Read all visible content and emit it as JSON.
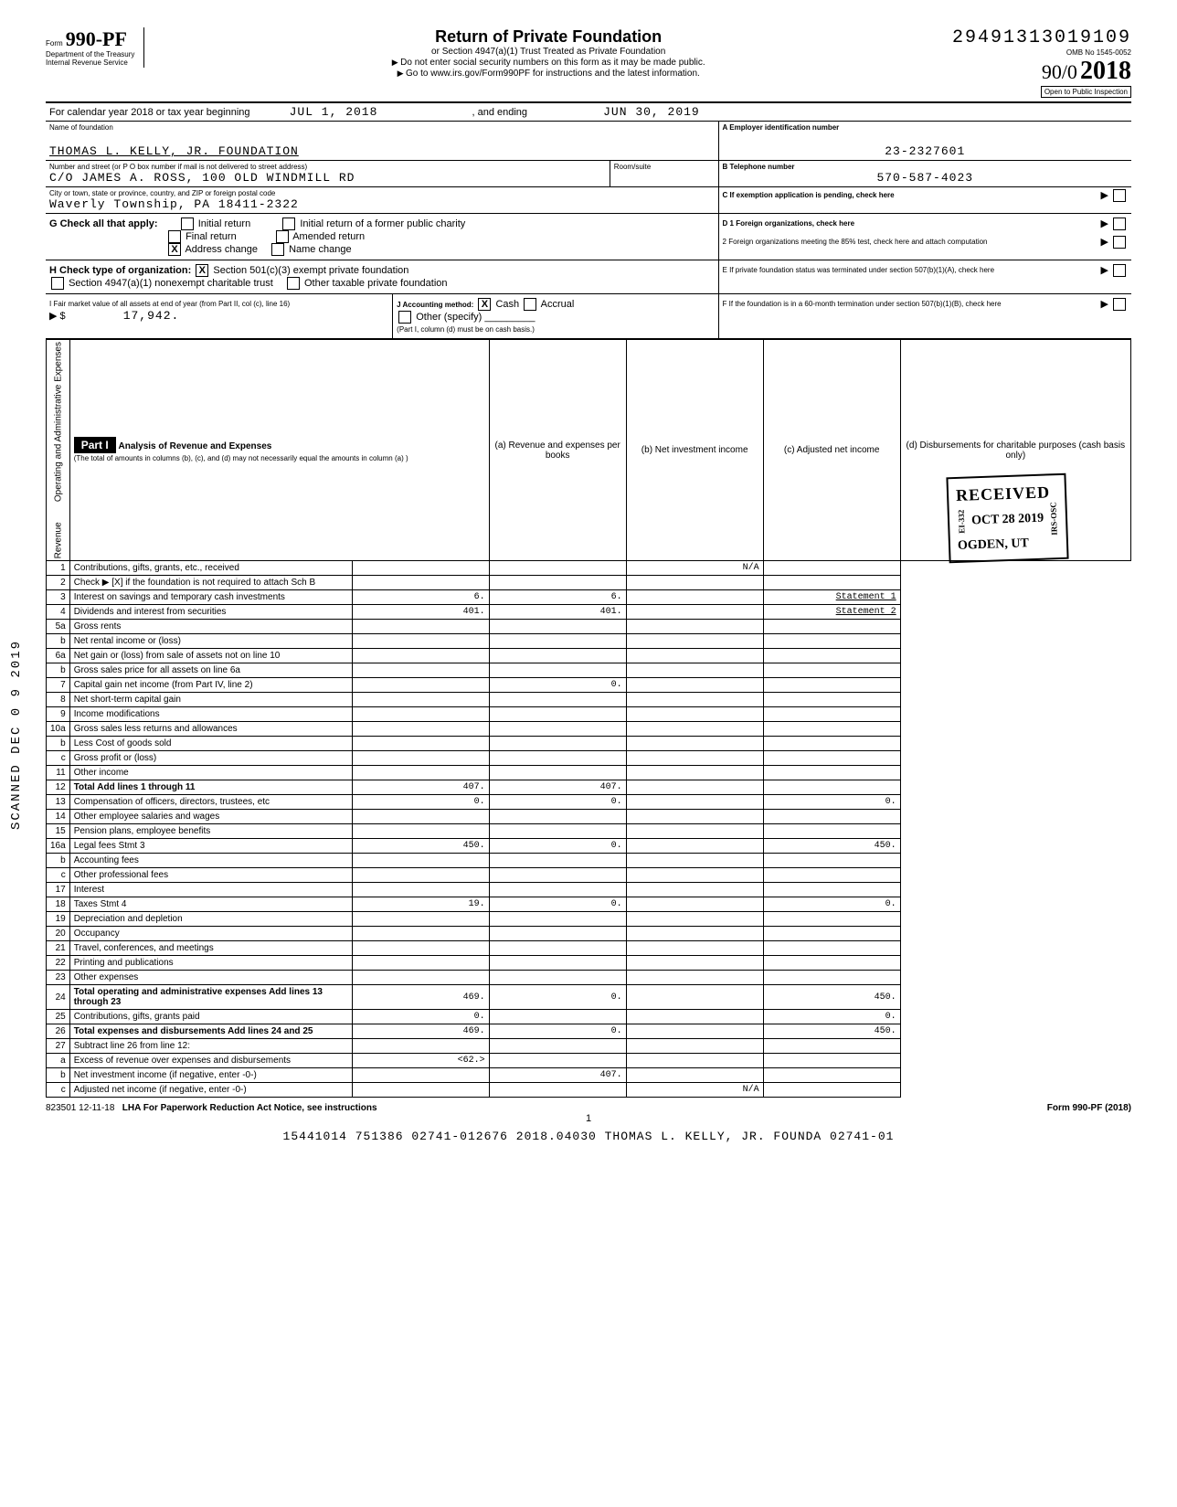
{
  "form": {
    "number_prefix": "Form",
    "number": "990-PF",
    "dept1": "Department of the Treasury",
    "dept2": "Internal Revenue Service",
    "title": "Return of Private Foundation",
    "sub1": "or Section 4947(a)(1) Trust Treated as Private Foundation",
    "sub2": "Do not enter social security numbers on this form as it may be made public.",
    "sub3": "Go to www.irs.gov/Form990PF for instructions and the latest information.",
    "seq": "29491313019109",
    "omb": "OMB No  1545-0052",
    "year": "2018",
    "handnote": "90/0",
    "inspection": "Open to Public Inspection"
  },
  "cal_year": {
    "label": "For calendar year 2018 or tax year beginning",
    "begin": "JUL 1, 2018",
    "end_label": ", and ending",
    "end": "JUN 30, 2019"
  },
  "id": {
    "name_label": "Name of foundation",
    "name": "THOMAS L. KELLY, JR. FOUNDATION",
    "addr_label": "Number and street (or P O  box number if mail is not delivered to street address)",
    "addr": "C/O JAMES A. ROSS, 100 OLD WINDMILL RD",
    "room_label": "Room/suite",
    "city_label": "City or town, state or province, country, and ZIP or foreign postal code",
    "city": "Waverly Township, PA  18411-2322",
    "A_label": "A Employer identification number",
    "A": "23-2327601",
    "B_label": "B Telephone number",
    "B": "570-587-4023",
    "C_label": "C  If exemption application is pending, check here"
  },
  "G": {
    "label": "G  Check all that apply:",
    "opts": [
      "Initial return",
      "Final return",
      "Address change",
      "Initial return of a former public charity",
      "Amended return",
      "Name change"
    ],
    "checked_idx": 2
  },
  "D": {
    "D1": "D 1  Foreign organizations, check here",
    "D2": "2  Foreign organizations meeting the 85% test, check here and attach computation"
  },
  "H": {
    "label": "H  Check type of organization:",
    "opt1": "Section 501(c)(3) exempt private foundation",
    "opt2": "Section 4947(a)(1) nonexempt charitable trust",
    "opt3": "Other taxable private foundation"
  },
  "E": "E  If private foundation status was terminated under section 507(b)(1)(A), check here",
  "I": {
    "label": "I  Fair market value of all assets at end of year (from Part II, col  (c), line 16)",
    "value": "17,942.",
    "J_label": "J  Accounting method:",
    "J_opts": [
      "Cash",
      "Accrual",
      "Other (specify)"
    ],
    "note": "(Part I, column (d) must be on cash basis.)"
  },
  "F": "F  If the foundation is in a 60-month termination under section 507(b)(1)(B), check here",
  "part1": {
    "label": "Part I",
    "title": "Analysis of Revenue and Expenses",
    "sub": "(The total of amounts in columns (b), (c), and (d) may not necessarily equal the amounts in column (a) )",
    "cols": [
      "(a) Revenue and expenses per books",
      "(b) Net investment income",
      "(c) Adjusted net income",
      "(d) Disbursements for charitable purposes (cash basis only)"
    ]
  },
  "rev_label": "Revenue",
  "exp_label": "Operating and Administrative Expenses",
  "lines": [
    {
      "n": "1",
      "d": "Contributions, gifts, grants, etc., received",
      "a": "",
      "b": "",
      "c": "N/A",
      "e": ""
    },
    {
      "n": "2",
      "d": "Check ▶ [X]  if the foundation is not required to attach Sch  B",
      "a": "",
      "b": "",
      "c": "",
      "e": ""
    },
    {
      "n": "3",
      "d": "Interest on savings and temporary cash investments",
      "a": "6.",
      "b": "6.",
      "c": "",
      "e": "Statement 1"
    },
    {
      "n": "4",
      "d": "Dividends and interest from securities",
      "a": "401.",
      "b": "401.",
      "c": "",
      "e": "Statement 2"
    },
    {
      "n": "5a",
      "d": "Gross rents",
      "a": "",
      "b": "",
      "c": "",
      "e": ""
    },
    {
      "n": "b",
      "d": "Net rental income or (loss)",
      "a": "",
      "b": "",
      "c": "",
      "e": ""
    },
    {
      "n": "6a",
      "d": "Net gain or (loss) from sale of assets not on line 10",
      "a": "",
      "b": "",
      "c": "",
      "e": ""
    },
    {
      "n": "b",
      "d": "Gross sales price for all assets on line 6a",
      "a": "",
      "b": "",
      "c": "",
      "e": ""
    },
    {
      "n": "7",
      "d": "Capital gain net income (from Part IV, line 2)",
      "a": "",
      "b": "0.",
      "c": "",
      "e": ""
    },
    {
      "n": "8",
      "d": "Net short-term capital gain",
      "a": "",
      "b": "",
      "c": "",
      "e": ""
    },
    {
      "n": "9",
      "d": "Income modifications",
      "a": "",
      "b": "",
      "c": "",
      "e": ""
    },
    {
      "n": "10a",
      "d": "Gross sales less returns and allowances",
      "a": "",
      "b": "",
      "c": "",
      "e": ""
    },
    {
      "n": "b",
      "d": "Less  Cost of goods sold",
      "a": "",
      "b": "",
      "c": "",
      "e": ""
    },
    {
      "n": "c",
      "d": "Gross profit or (loss)",
      "a": "",
      "b": "",
      "c": "",
      "e": ""
    },
    {
      "n": "11",
      "d": "Other income",
      "a": "",
      "b": "",
      "c": "",
      "e": ""
    },
    {
      "n": "12",
      "d": "Total  Add lines 1 through 11",
      "a": "407.",
      "b": "407.",
      "c": "",
      "e": ""
    },
    {
      "n": "13",
      "d": "Compensation of officers, directors, trustees, etc",
      "a": "0.",
      "b": "0.",
      "c": "",
      "e": "0."
    },
    {
      "n": "14",
      "d": "Other employee salaries and wages",
      "a": "",
      "b": "",
      "c": "",
      "e": ""
    },
    {
      "n": "15",
      "d": "Pension plans, employee benefits",
      "a": "",
      "b": "",
      "c": "",
      "e": ""
    },
    {
      "n": "16a",
      "d": "Legal fees                           Stmt 3",
      "a": "450.",
      "b": "0.",
      "c": "",
      "e": "450."
    },
    {
      "n": "b",
      "d": "Accounting fees",
      "a": "",
      "b": "",
      "c": "",
      "e": ""
    },
    {
      "n": "c",
      "d": "Other professional fees",
      "a": "",
      "b": "",
      "c": "",
      "e": ""
    },
    {
      "n": "17",
      "d": "Interest",
      "a": "",
      "b": "",
      "c": "",
      "e": ""
    },
    {
      "n": "18",
      "d": "Taxes                                Stmt 4",
      "a": "19.",
      "b": "0.",
      "c": "",
      "e": "0."
    },
    {
      "n": "19",
      "d": "Depreciation and depletion",
      "a": "",
      "b": "",
      "c": "",
      "e": ""
    },
    {
      "n": "20",
      "d": "Occupancy",
      "a": "",
      "b": "",
      "c": "",
      "e": ""
    },
    {
      "n": "21",
      "d": "Travel, conferences, and meetings",
      "a": "",
      "b": "",
      "c": "",
      "e": ""
    },
    {
      "n": "22",
      "d": "Printing and publications",
      "a": "",
      "b": "",
      "c": "",
      "e": ""
    },
    {
      "n": "23",
      "d": "Other expenses",
      "a": "",
      "b": "",
      "c": "",
      "e": ""
    },
    {
      "n": "24",
      "d": "Total operating and administrative expenses  Add lines 13 through 23",
      "a": "469.",
      "b": "0.",
      "c": "",
      "e": "450."
    },
    {
      "n": "25",
      "d": "Contributions, gifts, grants paid",
      "a": "0.",
      "b": "",
      "c": "",
      "e": "0."
    },
    {
      "n": "26",
      "d": "Total expenses and disbursements Add lines 24 and 25",
      "a": "469.",
      "b": "0.",
      "c": "",
      "e": "450."
    },
    {
      "n": "27",
      "d": "Subtract line 26 from line 12:",
      "a": "",
      "b": "",
      "c": "",
      "e": ""
    },
    {
      "n": "a",
      "d": "Excess of revenue over expenses and disbursements",
      "a": "<62.>",
      "b": "",
      "c": "",
      "e": ""
    },
    {
      "n": "b",
      "d": "Net investment income (if negative, enter -0-)",
      "a": "",
      "b": "407.",
      "c": "",
      "e": ""
    },
    {
      "n": "c",
      "d": "Adjusted net income (if negative, enter -0-)",
      "a": "",
      "b": "",
      "c": "N/A",
      "e": ""
    }
  ],
  "stamp": {
    "received": "RECEIVED",
    "date": "OCT 28 2019",
    "where": "OGDEN, UT",
    "side1": "EI-332",
    "side2": "IRS-OSC"
  },
  "side_text": "SCANNED DEC 0 9 2019",
  "footer": {
    "code": "823501  12-11-18",
    "lha": "LHA  For Paperwork Reduction Act Notice, see instructions",
    "form": "Form 990-PF (2018)",
    "page": "1",
    "bottom": "15441014 751386 02741-012676   2018.04030 THOMAS L. KELLY, JR. FOUNDA 02741-01"
  }
}
